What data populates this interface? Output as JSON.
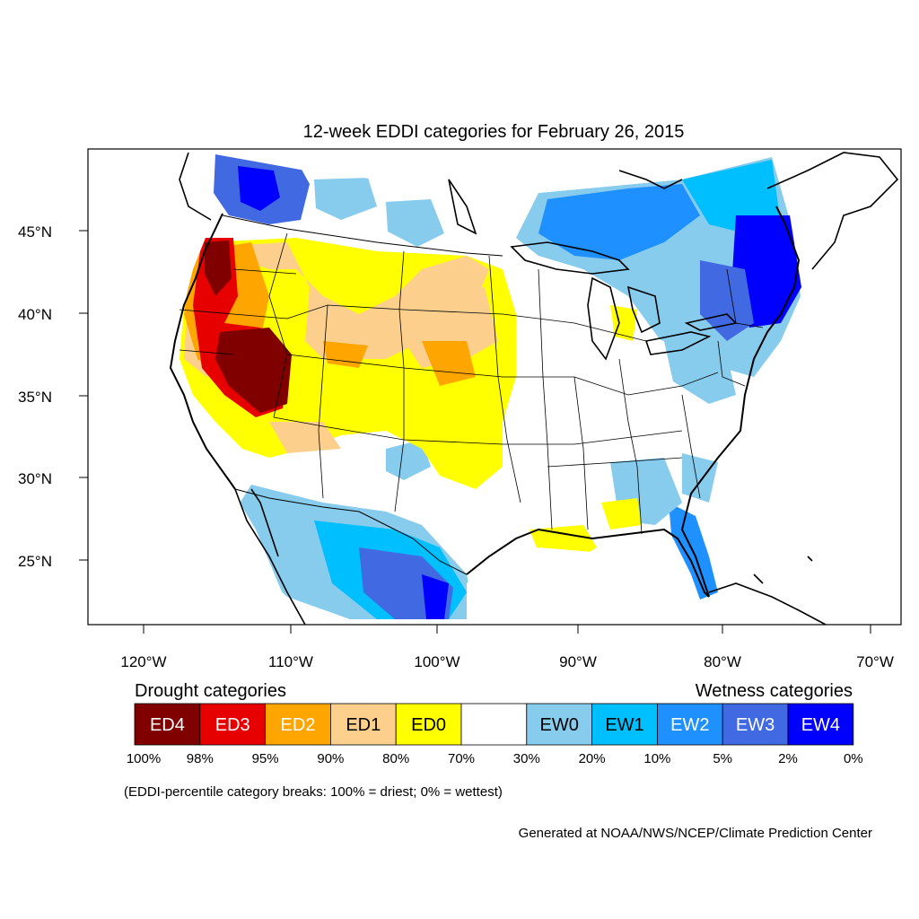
{
  "title": "12-week EDDI categories for February 26, 2015",
  "lat_labels": [
    "45°N",
    "40°N",
    "35°N",
    "30°N",
    "25°N"
  ],
  "lon_labels": [
    "120°W",
    "110°W",
    "100°W",
    "90°W",
    "80°W",
    "70°W"
  ],
  "legend": {
    "drought_heading": "Drought categories",
    "wetness_heading": "Wetness categories",
    "categories": [
      {
        "label": "ED4",
        "color": "#800000",
        "text_color": "#ffffff"
      },
      {
        "label": "ED3",
        "color": "#e60000",
        "text_color": "#ffffff"
      },
      {
        "label": "ED2",
        "color": "#ffa500",
        "text_color": "#ffffff"
      },
      {
        "label": "ED1",
        "color": "#fcd08c",
        "text_color": "#000000"
      },
      {
        "label": "ED0",
        "color": "#ffff00",
        "text_color": "#000000"
      },
      {
        "label": "",
        "color": "#ffffff",
        "text_color": "#000000"
      },
      {
        "label": "EW0",
        "color": "#87cbed",
        "text_color": "#000000"
      },
      {
        "label": "EW1",
        "color": "#00bfff",
        "text_color": "#000000"
      },
      {
        "label": "EW2",
        "color": "#1e90ff",
        "text_color": "#ffffff"
      },
      {
        "label": "EW3",
        "color": "#4169e1",
        "text_color": "#ffffff"
      },
      {
        "label": "EW4",
        "color": "#0000ff",
        "text_color": "#ffffff"
      }
    ],
    "breaks": [
      "100%",
      "98%",
      "95%",
      "90%",
      "80%",
      "70%",
      "30%",
      "20%",
      "10%",
      "5%",
      "2%",
      "0%"
    ],
    "note": "(EDDI-percentile category breaks: 100% = driest; 0% = wettest)"
  },
  "credit": "Generated at NOAA/NWS/NCEP/Climate Prediction Center"
}
